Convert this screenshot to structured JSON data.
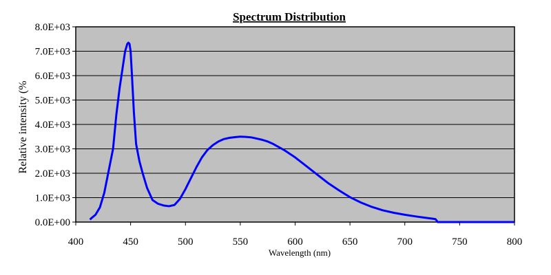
{
  "chart_data": {
    "type": "line",
    "title": "Spectrum Distribution",
    "xlabel": "Wavelength (nm)",
    "ylabel": "Relative intensity (%",
    "xlim": [
      400,
      800
    ],
    "ylim": [
      0,
      8000
    ],
    "x_ticks": [
      400,
      450,
      500,
      550,
      600,
      650,
      700,
      750,
      800
    ],
    "y_ticks": [
      0,
      1000,
      2000,
      3000,
      4000,
      5000,
      6000,
      7000,
      8000
    ],
    "x_tick_labels": [
      "400",
      "450",
      "500",
      "550",
      "600",
      "650",
      "700",
      "750",
      "800"
    ],
    "y_tick_labels": [
      "0.0E+00",
      "1.0E+03",
      "2.0E+03",
      "3.0E+03",
      "4.0E+03",
      "5.0E+03",
      "6.0E+03",
      "7.0E+03",
      "8.0E+03"
    ],
    "grid": "horizontal",
    "plot_background": "#c0c0c0",
    "series": [
      {
        "color": "#0000ff",
        "x": [
          413,
          414,
          418,
          422,
          426,
          430,
          434,
          437,
          440,
          443,
          445,
          447,
          448,
          449,
          450,
          451,
          453,
          455,
          458,
          461,
          465,
          470,
          475,
          480,
          485,
          490,
          495,
          500,
          505,
          510,
          515,
          520,
          525,
          530,
          535,
          540,
          545,
          550,
          555,
          560,
          565,
          570,
          575,
          580,
          590,
          600,
          610,
          620,
          630,
          640,
          650,
          660,
          670,
          680,
          690,
          700,
          710,
          720,
          725,
          728,
          730,
          740,
          760,
          780,
          800
        ],
        "y": [
          100,
          150,
          300,
          600,
          1200,
          2100,
          3000,
          4400,
          5500,
          6400,
          7000,
          7300,
          7350,
          7300,
          7000,
          6200,
          4500,
          3200,
          2500,
          2000,
          1400,
          900,
          750,
          680,
          650,
          700,
          950,
          1350,
          1800,
          2250,
          2650,
          2950,
          3150,
          3300,
          3400,
          3450,
          3480,
          3500,
          3490,
          3470,
          3420,
          3370,
          3300,
          3200,
          2950,
          2650,
          2300,
          1950,
          1600,
          1300,
          1020,
          800,
          620,
          480,
          380,
          300,
          230,
          170,
          140,
          120,
          0,
          0,
          0,
          0,
          0
        ]
      }
    ]
  }
}
